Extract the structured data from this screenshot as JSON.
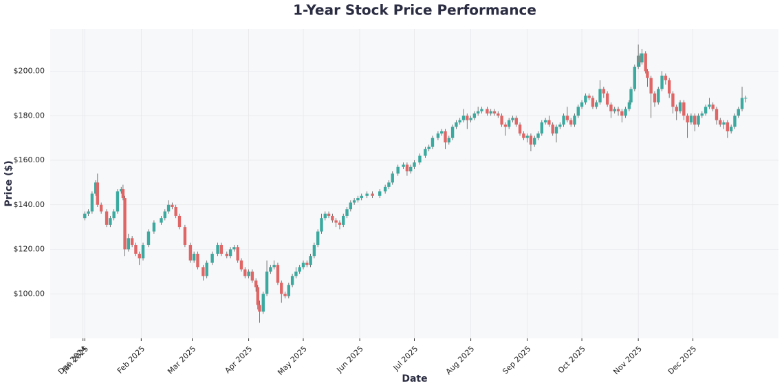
{
  "chart_data": {
    "type": "candlestick",
    "title": "1-Year Stock Price Performance",
    "x_label": "Date",
    "y_label": "Price ($)",
    "up_color": "#3aa99f",
    "down_color": "#e06666",
    "grid": true,
    "xlim": [
      -19,
      381
    ],
    "ylim": [
      80,
      219
    ],
    "xticks": [
      {
        "value": -1,
        "label": "Dec 2024"
      },
      {
        "value": 0,
        "label": "Jan 2025"
      },
      {
        "value": 31,
        "label": "Feb 2025"
      },
      {
        "value": 59,
        "label": "Mar 2025"
      },
      {
        "value": 90,
        "label": "Apr 2025"
      },
      {
        "value": 120,
        "label": "May 2025"
      },
      {
        "value": 151,
        "label": "Jun 2025"
      },
      {
        "value": 181,
        "label": "Jul 2025"
      },
      {
        "value": 212,
        "label": "Aug 2025"
      },
      {
        "value": 243,
        "label": "Sep 2025"
      },
      {
        "value": 273,
        "label": "Oct 2025"
      },
      {
        "value": 304,
        "label": "Nov 2025"
      },
      {
        "value": 334,
        "label": "Dec 2025"
      }
    ],
    "yticks": [
      {
        "value": 100,
        "label": "$100.00"
      },
      {
        "value": 120,
        "label": "$120.00"
      },
      {
        "value": 140,
        "label": "$140.00"
      },
      {
        "value": 160,
        "label": "$160.00"
      },
      {
        "value": 180,
        "label": "$180.00"
      },
      {
        "value": 200,
        "label": "$200.00"
      }
    ],
    "x": [
      0,
      2,
      4,
      6,
      7,
      9,
      12,
      14,
      16,
      18,
      20,
      21,
      22,
      24,
      26,
      28,
      30,
      32,
      35,
      38,
      42,
      44,
      46,
      48,
      50,
      52,
      55,
      58,
      60,
      62,
      65,
      67,
      70,
      73,
      75,
      78,
      80,
      82,
      84,
      86,
      88,
      90,
      92,
      94,
      95,
      96,
      98,
      100,
      102,
      104,
      106,
      108,
      110,
      112,
      114,
      116,
      118,
      120,
      122,
      124,
      126,
      128,
      130,
      132,
      134,
      136,
      138,
      140,
      142,
      144,
      146,
      148,
      150,
      152,
      155,
      158,
      162,
      165,
      167,
      169,
      172,
      175,
      177,
      179,
      181,
      184,
      187,
      189,
      191,
      194,
      196,
      198,
      200,
      202,
      204,
      206,
      208,
      210,
      212,
      214,
      216,
      218,
      221,
      223,
      225,
      227,
      229,
      231,
      233,
      235,
      237,
      239,
      241,
      243,
      245,
      247,
      249,
      251,
      253,
      255,
      257,
      259,
      261,
      263,
      265,
      267,
      269,
      271,
      273,
      275,
      277,
      279,
      281,
      283,
      285,
      287,
      289,
      291,
      293,
      295,
      297,
      299,
      300,
      302,
      304,
      305,
      306,
      308,
      309,
      311,
      313,
      315,
      317,
      319,
      321,
      323,
      325,
      327,
      329,
      331,
      333,
      335,
      337,
      339,
      341,
      343,
      345,
      347,
      349,
      351,
      353,
      355,
      357,
      359,
      361,
      363
    ],
    "open": [
      134,
      136,
      137,
      145,
      150,
      140,
      137,
      131,
      134,
      137,
      146,
      147,
      143,
      120,
      125,
      122,
      118,
      116,
      122,
      128,
      132,
      134,
      137,
      140,
      139,
      135,
      130,
      122,
      115,
      118,
      112,
      108,
      114,
      118,
      122,
      118,
      117,
      120,
      121,
      115,
      111,
      108,
      110,
      106,
      103,
      95,
      92,
      100,
      110,
      112,
      113,
      105,
      100,
      99,
      104,
      108,
      110,
      112,
      114,
      113,
      117,
      122,
      128,
      134,
      136,
      135,
      133,
      132,
      131,
      135,
      138,
      141,
      142,
      143,
      144,
      145,
      144,
      146,
      148,
      150,
      154,
      157,
      158,
      155,
      157,
      159,
      162,
      165,
      166,
      170,
      172,
      173,
      168,
      170,
      175,
      177,
      178,
      180,
      178,
      179,
      181,
      182,
      183,
      181,
      182,
      181,
      180,
      176,
      175,
      178,
      179,
      176,
      172,
      170,
      171,
      167,
      170,
      172,
      177,
      178,
      176,
      172,
      175,
      176,
      180,
      178,
      176,
      180,
      184,
      186,
      189,
      188,
      184,
      186,
      192,
      190,
      185,
      182,
      183,
      182,
      180,
      183,
      186,
      192,
      202,
      207,
      204,
      208,
      200,
      197,
      190,
      186,
      192,
      198,
      196,
      190,
      184,
      182,
      186,
      180,
      177,
      180,
      176,
      180,
      181,
      184,
      185,
      183,
      178,
      176,
      177,
      173,
      175,
      180,
      183,
      188
    ],
    "high": [
      137,
      138,
      146,
      151,
      154,
      141,
      138,
      135,
      138,
      147,
      148,
      149,
      144,
      127,
      126,
      123,
      119,
      123,
      129,
      133,
      135,
      138,
      142,
      141,
      140,
      136,
      131,
      123,
      119,
      119,
      113,
      115,
      119,
      123,
      123,
      119,
      121,
      122,
      122,
      116,
      112,
      111,
      111,
      107,
      104,
      97,
      101,
      115,
      113,
      115,
      114,
      106,
      101,
      105,
      109,
      112,
      113,
      115,
      115,
      118,
      123,
      129,
      136,
      137,
      137,
      136,
      134,
      133,
      136,
      139,
      142,
      143,
      144,
      145,
      146,
      146,
      147,
      149,
      151,
      155,
      158,
      159,
      159,
      158,
      160,
      163,
      166,
      167,
      171,
      173,
      174,
      174,
      171,
      176,
      178,
      179,
      183,
      181,
      180,
      182,
      184,
      184,
      184,
      183,
      183,
      182,
      181,
      177,
      179,
      180,
      180,
      177,
      173,
      172,
      172,
      171,
      173,
      178,
      179,
      180,
      177,
      176,
      177,
      181,
      184,
      179,
      181,
      185,
      187,
      190,
      190,
      189,
      187,
      196,
      193,
      191,
      186,
      184,
      184,
      183,
      184,
      187,
      193,
      203,
      212,
      208,
      210,
      209,
      201,
      198,
      191,
      193,
      200,
      199,
      197,
      191,
      185,
      187,
      187,
      181,
      181,
      181,
      181,
      182,
      185,
      188,
      186,
      184,
      179,
      178,
      178,
      176,
      181,
      184,
      193,
      189
    ],
    "low": [
      133,
      135,
      136,
      144,
      139,
      136,
      130,
      130,
      133,
      136,
      145,
      142,
      117,
      119,
      121,
      117,
      113,
      115,
      121,
      127,
      131,
      133,
      136,
      138,
      134,
      129,
      121,
      114,
      114,
      111,
      106,
      107,
      113,
      117,
      117,
      116,
      116,
      119,
      114,
      110,
      107,
      107,
      105,
      101,
      93,
      87,
      91,
      99,
      109,
      111,
      104,
      96,
      98,
      98,
      103,
      107,
      109,
      111,
      112,
      112,
      116,
      121,
      127,
      133,
      134,
      132,
      130,
      129,
      130,
      134,
      137,
      140,
      141,
      142,
      143,
      143,
      143,
      145,
      147,
      149,
      153,
      156,
      153,
      154,
      156,
      158,
      161,
      164,
      165,
      169,
      171,
      165,
      167,
      169,
      174,
      176,
      177,
      174,
      177,
      178,
      180,
      181,
      180,
      180,
      180,
      179,
      175,
      171,
      174,
      177,
      175,
      171,
      169,
      168,
      164,
      166,
      169,
      171,
      176,
      175,
      171,
      168,
      174,
      175,
      177,
      175,
      175,
      179,
      183,
      185,
      187,
      183,
      183,
      185,
      188,
      184,
      179,
      181,
      180,
      177,
      179,
      182,
      185,
      191,
      201,
      202,
      203,
      199,
      193,
      179,
      184,
      185,
      191,
      194,
      188,
      181,
      178,
      181,
      178,
      170,
      176,
      173,
      175,
      179,
      180,
      183,
      182,
      176,
      175,
      174,
      170,
      172,
      174,
      179,
      182,
      186
    ],
    "close": [
      136,
      137,
      145,
      150,
      140,
      137,
      131,
      134,
      137,
      146,
      147,
      143,
      120,
      125,
      122,
      118,
      116,
      122,
      128,
      132,
      134,
      137,
      140,
      139,
      135,
      130,
      122,
      115,
      118,
      112,
      108,
      114,
      118,
      122,
      118,
      117,
      120,
      121,
      115,
      111,
      108,
      110,
      106,
      103,
      95,
      92,
      100,
      110,
      112,
      113,
      105,
      100,
      99,
      104,
      108,
      110,
      112,
      114,
      113,
      117,
      122,
      128,
      134,
      136,
      135,
      133,
      132,
      131,
      135,
      138,
      141,
      142,
      143,
      144,
      145,
      144,
      146,
      148,
      150,
      154,
      157,
      158,
      155,
      157,
      159,
      162,
      165,
      166,
      170,
      172,
      173,
      168,
      170,
      175,
      177,
      178,
      180,
      178,
      179,
      181,
      182,
      183,
      181,
      182,
      181,
      180,
      176,
      175,
      178,
      179,
      176,
      172,
      170,
      171,
      167,
      170,
      172,
      177,
      178,
      176,
      172,
      175,
      176,
      180,
      178,
      176,
      180,
      184,
      186,
      189,
      188,
      184,
      186,
      192,
      190,
      185,
      182,
      183,
      182,
      180,
      183,
      186,
      192,
      202,
      207,
      204,
      208,
      200,
      197,
      190,
      186,
      192,
      198,
      196,
      190,
      184,
      182,
      186,
      180,
      177,
      180,
      176,
      180,
      181,
      184,
      185,
      183,
      178,
      176,
      177,
      173,
      175,
      180,
      183,
      188,
      188
    ]
  }
}
